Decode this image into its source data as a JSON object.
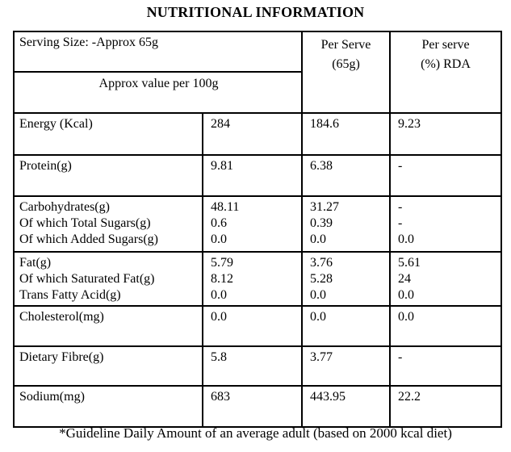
{
  "page": {
    "title": "NUTRITIONAL INFORMATION",
    "footnote": "*Guideline Daily Amount of an average adult (based on 2000 kcal diet)",
    "colors": {
      "background": "#ffffff",
      "text": "#000000",
      "border": "#000000"
    }
  },
  "table": {
    "header": {
      "serving_size": "Serving Size: -Approx 65g",
      "approx_value_per_100g": "Approx value per 100g",
      "per_serve": {
        "line1": "Per Serve",
        "line2": "(65g)"
      },
      "per_serve_rda": {
        "line1": "Per serve",
        "line2": "(%) RDA"
      }
    },
    "body": [
      {
        "key": "energy",
        "labels": [
          "Energy (Kcal)"
        ],
        "per_100g": [
          "284"
        ],
        "per_serve": [
          "184.6"
        ],
        "rda": [
          "9.23"
        ]
      },
      {
        "key": "protein",
        "labels": [
          "Protein(g)"
        ],
        "per_100g": [
          "9.81"
        ],
        "per_serve": [
          "6.38"
        ],
        "rda": [
          "-"
        ]
      },
      {
        "key": "carbohydrates",
        "labels": [
          "Carbohydrates(g)",
          "Of which Total Sugars(g)",
          "Of which Added Sugars(g)"
        ],
        "per_100g": [
          "48.11",
          "0.6",
          "0.0"
        ],
        "per_serve": [
          "31.27",
          "0.39",
          "0.0"
        ],
        "rda": [
          "-",
          "-",
          "0.0"
        ]
      },
      {
        "key": "fat",
        "labels": [
          "Fat(g)",
          "Of which Saturated Fat(g)",
          "Trans Fatty Acid(g)"
        ],
        "per_100g": [
          "5.79",
          "8.12",
          "0.0"
        ],
        "per_serve": [
          "3.76",
          "5.28",
          "0.0"
        ],
        "rda": [
          "5.61",
          "24",
          "0.0"
        ]
      },
      {
        "key": "cholesterol",
        "labels": [
          "Cholesterol(mg)"
        ],
        "per_100g": [
          "0.0"
        ],
        "per_serve": [
          "0.0"
        ],
        "rda": [
          "0.0"
        ]
      },
      {
        "key": "dietary-fibre",
        "labels": [
          "Dietary Fibre(g)"
        ],
        "per_100g": [
          "5.8"
        ],
        "per_serve": [
          "3.77"
        ],
        "rda": [
          "-"
        ]
      },
      {
        "key": "sodium",
        "labels": [
          "Sodium(mg)"
        ],
        "per_100g": [
          "683"
        ],
        "per_serve": [
          "443.95"
        ],
        "rda": [
          "22.2"
        ]
      }
    ]
  }
}
